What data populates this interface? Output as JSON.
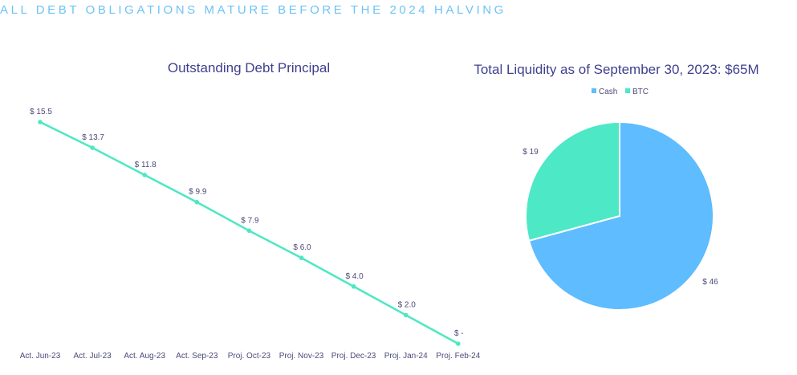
{
  "headline": "ALL DEBT OBLIGATIONS MATURE BEFORE THE 2024 HALVING",
  "colors": {
    "line": "#4de8c2",
    "cash": "#5ebcff",
    "btc": "#4de8c6",
    "headline": "#6ec3f5"
  },
  "chart_data": [
    {
      "type": "line",
      "title": "Outstanding Debt Principal",
      "categories": [
        "Act. Jun-23",
        "Act. Jul-23",
        "Act. Aug-23",
        "Act. Sep-23",
        "Proj. Oct-23",
        "Proj. Nov-23",
        "Proj. Dec-23",
        "Proj. Jan-24",
        "Proj. Feb-24"
      ],
      "values": [
        15.5,
        13.7,
        11.8,
        9.9,
        7.9,
        6.0,
        4.0,
        2.0,
        0
      ],
      "data_labels": [
        "$ 15.5",
        "$ 13.7",
        "$ 11.8",
        "$ 9.9",
        "$ 7.9",
        "$ 6.0",
        "$ 4.0",
        "$ 2.0",
        "$ -"
      ],
      "ylim": [
        0,
        15.5
      ],
      "grid": false,
      "legend": "none"
    },
    {
      "type": "pie",
      "title": "Total Liquidity as of September 30, 2023: $65M",
      "slices": [
        {
          "name": "Cash",
          "value": 46,
          "label": "$ 46",
          "color": "#5ebcff"
        },
        {
          "name": "BTC",
          "value": 19,
          "label": "$ 19",
          "color": "#4de8c6"
        }
      ],
      "legend_position": "top",
      "start": "12 o'clock",
      "direction": "clockwise"
    }
  ]
}
